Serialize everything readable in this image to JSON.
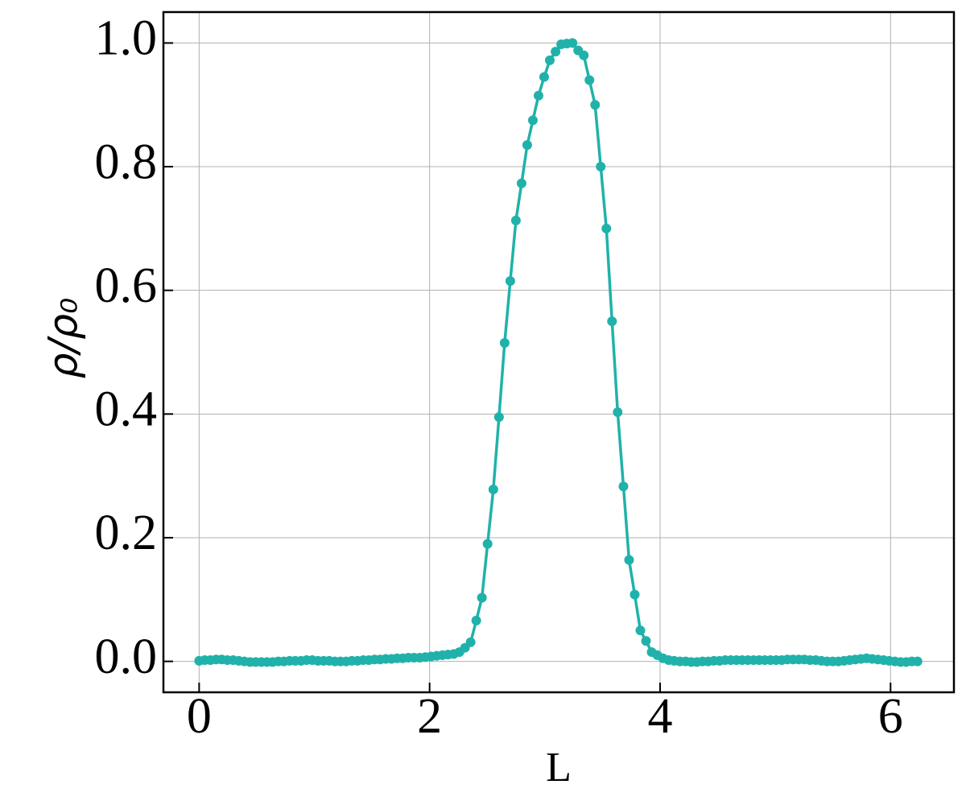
{
  "chart_data": {
    "type": "line",
    "xlabel": "L",
    "ylabel": "ρ/ρ₀",
    "color": "#20b2aa",
    "grid": true,
    "xlim": [
      -0.31,
      6.55
    ],
    "ylim": [
      -0.05,
      1.05
    ],
    "xticks": [
      0,
      2,
      4,
      6
    ],
    "yticks": [
      {
        "value": 0,
        "label": "0.0"
      },
      {
        "value": 0.2,
        "label": "0.2"
      },
      {
        "value": 0.4,
        "label": "0.4"
      },
      {
        "value": 0.6,
        "label": "0.6"
      },
      {
        "value": 0.8,
        "label": "0.8"
      },
      {
        "value": 1,
        "label": "1.0"
      }
    ],
    "x": [
      0,
      0.049,
      0.098,
      0.147,
      0.196,
      0.245,
      0.295,
      0.344,
      0.393,
      0.442,
      0.491,
      0.54,
      0.589,
      0.638,
      0.687,
      0.736,
      0.785,
      0.834,
      0.884,
      0.933,
      0.982,
      1.031,
      1.08,
      1.129,
      1.178,
      1.227,
      1.276,
      1.325,
      1.374,
      1.424,
      1.473,
      1.522,
      1.571,
      1.62,
      1.669,
      1.718,
      1.767,
      1.816,
      1.865,
      1.914,
      1.963,
      2.013,
      2.062,
      2.111,
      2.16,
      2.209,
      2.258,
      2.307,
      2.356,
      2.405,
      2.454,
      2.503,
      2.553,
      2.602,
      2.651,
      2.7,
      2.749,
      2.798,
      2.847,
      2.896,
      2.945,
      2.994,
      3.043,
      3.093,
      3.142,
      3.191,
      3.24,
      3.289,
      3.338,
      3.387,
      3.436,
      3.485,
      3.534,
      3.583,
      3.632,
      3.682,
      3.731,
      3.78,
      3.829,
      3.878,
      3.927,
      3.976,
      4.025,
      4.074,
      4.123,
      4.172,
      4.222,
      4.271,
      4.32,
      4.369,
      4.418,
      4.467,
      4.516,
      4.565,
      4.614,
      4.663,
      4.712,
      4.762,
      4.811,
      4.86,
      4.909,
      4.958,
      5.007,
      5.056,
      5.105,
      5.154,
      5.203,
      5.252,
      5.301,
      5.351,
      5.4,
      5.449,
      5.498,
      5.547,
      5.596,
      5.645,
      5.694,
      5.743,
      5.792,
      5.841,
      5.89,
      5.94,
      5.989,
      6.038,
      6.087,
      6.136,
      6.185,
      6.234
    ],
    "values": [
      0.001,
      0.002,
      0.002,
      0.003,
      0.003,
      0.002,
      0.002,
      0.001,
      0.0,
      -0.001,
      -0.001,
      -0.001,
      -0.001,
      -0.001,
      0.0,
      0.0,
      0.001,
      0.001,
      0.001,
      0.002,
      0.002,
      0.001,
      0.001,
      0.001,
      0.0,
      0.0,
      0.0,
      0.001,
      0.001,
      0.002,
      0.002,
      0.003,
      0.003,
      0.004,
      0.004,
      0.005,
      0.005,
      0.006,
      0.006,
      0.006,
      0.007,
      0.008,
      0.009,
      0.01,
      0.011,
      0.012,
      0.015,
      0.022,
      0.031,
      0.066,
      0.103,
      0.19,
      0.278,
      0.395,
      0.515,
      0.615,
      0.713,
      0.773,
      0.835,
      0.875,
      0.915,
      0.945,
      0.972,
      0.986,
      0.998,
      0.999,
      1.0,
      0.988,
      0.98,
      0.94,
      0.9,
      0.8,
      0.7,
      0.55,
      0.403,
      0.283,
      0.164,
      0.108,
      0.05,
      0.033,
      0.015,
      0.01,
      0.005,
      0.002,
      0.001,
      0.0,
      0.0,
      -0.001,
      -0.001,
      0.0,
      0.0,
      0.001,
      0.001,
      0.002,
      0.002,
      0.002,
      0.002,
      0.002,
      0.002,
      0.002,
      0.002,
      0.002,
      0.002,
      0.002,
      0.003,
      0.003,
      0.003,
      0.003,
      0.002,
      0.002,
      0.001,
      0.0,
      0.0,
      0.0,
      0.001,
      0.002,
      0.003,
      0.004,
      0.005,
      0.004,
      0.003,
      0.002,
      0.001,
      0.0,
      -0.001,
      -0.001,
      0.0,
      0.0
    ]
  }
}
